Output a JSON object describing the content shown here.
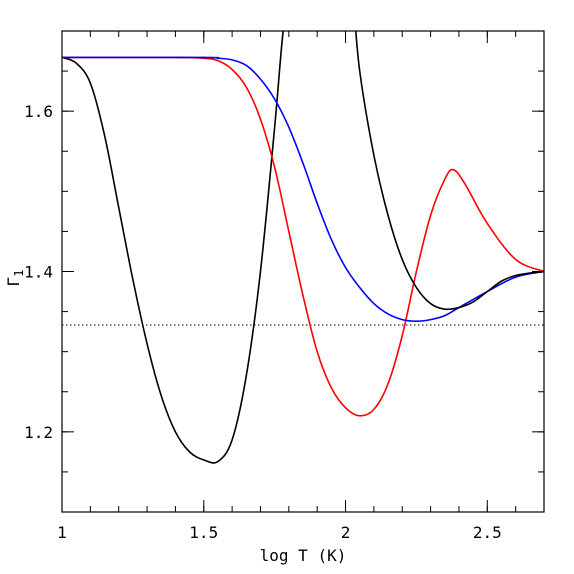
{
  "chart_data": {
    "type": "line",
    "xlabel": "log T (K)",
    "ylabel": "Γ",
    "ylabel_subscript": "1",
    "xlim": [
      1.0,
      2.7
    ],
    "ylim": [
      1.1,
      1.7
    ],
    "x_ticks": [
      {
        "value": 1.0,
        "label": "1"
      },
      {
        "value": 1.5,
        "label": "1.5"
      },
      {
        "value": 2.0,
        "label": "2"
      },
      {
        "value": 2.5,
        "label": "2.5"
      }
    ],
    "y_ticks": [
      {
        "value": 1.2,
        "label": "1.2"
      },
      {
        "value": 1.4,
        "label": "1.4"
      },
      {
        "value": 1.6,
        "label": "1.6"
      }
    ],
    "x_minor_step": 0.1,
    "y_minor_step": 0.05,
    "grid": false,
    "reference_line": {
      "y": 1.3333,
      "style": "dotted",
      "color": "#000000"
    },
    "series": [
      {
        "color": "#000000",
        "x": [
          1.0,
          1.05,
          1.1,
          1.15,
          1.2,
          1.25,
          1.3,
          1.35,
          1.4,
          1.45,
          1.5,
          1.55,
          1.6,
          1.65,
          1.7,
          1.75,
          1.78,
          1.8
        ],
        "y": [
          1.667,
          1.66,
          1.635,
          1.57,
          1.48,
          1.39,
          1.31,
          1.245,
          1.2,
          1.175,
          1.165,
          1.163,
          1.19,
          1.27,
          1.4,
          1.58,
          1.7,
          1.73
        ]
      },
      {
        "color": "#ff0000",
        "x": [
          1.0,
          1.4,
          1.5,
          1.55,
          1.6,
          1.65,
          1.7,
          1.75,
          1.8,
          1.85,
          1.9,
          1.95,
          2.0,
          2.05,
          2.1,
          2.15,
          2.2,
          2.25,
          2.3,
          2.35,
          2.38,
          2.42,
          2.5,
          2.6,
          2.7
        ],
        "y": [
          1.667,
          1.667,
          1.666,
          1.663,
          1.652,
          1.63,
          1.59,
          1.53,
          1.45,
          1.37,
          1.3,
          1.255,
          1.23,
          1.22,
          1.228,
          1.26,
          1.32,
          1.4,
          1.47,
          1.515,
          1.527,
          1.51,
          1.46,
          1.415,
          1.4
        ]
      },
      {
        "color": "#0000ff",
        "x": [
          1.0,
          1.5,
          1.55,
          1.6,
          1.65,
          1.7,
          1.75,
          1.8,
          1.85,
          1.9,
          1.95,
          2.0,
          2.05,
          2.1,
          2.15,
          2.2,
          2.25,
          2.3,
          2.35,
          2.4,
          2.5,
          2.6,
          2.7
        ],
        "y": [
          1.667,
          1.667,
          1.666,
          1.664,
          1.657,
          1.64,
          1.615,
          1.58,
          1.535,
          1.485,
          1.44,
          1.405,
          1.38,
          1.36,
          1.347,
          1.34,
          1.338,
          1.34,
          1.345,
          1.355,
          1.375,
          1.393,
          1.4
        ]
      },
      {
        "color": "#000000",
        "x": [
          2.03,
          2.05,
          2.1,
          2.15,
          2.2,
          2.25,
          2.3,
          2.35,
          2.4,
          2.45,
          2.5,
          2.55,
          2.6,
          2.65,
          2.7
        ],
        "y": [
          1.73,
          1.65,
          1.545,
          1.47,
          1.415,
          1.38,
          1.36,
          1.353,
          1.355,
          1.362,
          1.375,
          1.388,
          1.395,
          1.398,
          1.4
        ]
      }
    ]
  }
}
